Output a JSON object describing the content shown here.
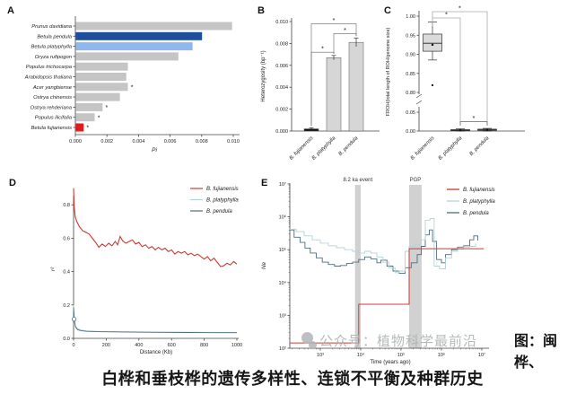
{
  "figure": {
    "panel_labels": {
      "a": "A",
      "b": "B",
      "c": "C",
      "d": "D",
      "e": "E"
    }
  },
  "caption": {
    "side_note": "图：闽桦、",
    "main": "白桦和垂枝桦的遗传多样性、连锁不平衡及种群历史"
  },
  "watermark": {
    "source_label": "公众号：植物科学最前沿",
    "icon": "official-account-icon"
  },
  "colors": {
    "gray_bar": "#c5c5c5",
    "bar_gray": "#d6d6d6",
    "dark_blue": "#1e4f9e",
    "light_blue": "#8fb9ee",
    "red": "#e6191b",
    "black": "#111111",
    "box_gray": "#dadada",
    "line_red": "#cc3b33",
    "line_teal": "#b5d3d5",
    "line_slate": "#4e6e7c",
    "band_gray": "#c9c9c9",
    "axis": "#444444"
  },
  "chart_data": [
    {
      "panel": "A",
      "type": "bar",
      "orientation": "horizontal",
      "xlabel": "Pi",
      "xlim": [
        0,
        0.01
      ],
      "xticks": [
        0,
        0.002,
        0.004,
        0.006,
        0.008,
        0.01
      ],
      "categories": [
        "Prunus davidiana",
        "Betula pendula",
        "Betula platyphylla",
        "Oryza rufipogon",
        "Populus trichocarpa",
        "Arabidopsis thaliana",
        "Acer yangbiense",
        "Ostrya chinensis",
        "Ostrya rehderiana",
        "Populus ilicifolia",
        "Betula fujianensis"
      ],
      "values": [
        0.0099,
        0.008,
        0.0074,
        0.0065,
        0.0033,
        0.0032,
        0.0033,
        0.0028,
        0.0017,
        0.0012,
        0.0005
      ],
      "starred": [
        false,
        false,
        false,
        false,
        false,
        false,
        true,
        false,
        true,
        true,
        true
      ],
      "bar_colors": [
        "gray_bar",
        "dark_blue",
        "light_blue",
        "gray_bar",
        "gray_bar",
        "gray_bar",
        "gray_bar",
        "gray_bar",
        "gray_bar",
        "gray_bar",
        "red"
      ]
    },
    {
      "panel": "B",
      "type": "bar",
      "orientation": "vertical",
      "ylabel": "Heterozygosity (bp⁻¹)",
      "ylim": [
        0,
        0.01
      ],
      "yticks": [
        0,
        0.002,
        0.004,
        0.006,
        0.008,
        0.01
      ],
      "categories": [
        "B. fujianensis",
        "B. platyphylla",
        "B. pendula"
      ],
      "values": [
        0.0002,
        0.0067,
        0.0081
      ],
      "errors": [
        0.0001,
        0.0002,
        0.0004
      ],
      "bar_colors": [
        "black",
        "bar_gray",
        "bar_gray"
      ],
      "sig_brackets": [
        {
          "from": 0,
          "to": 1,
          "y": 0.0072,
          "label": "*"
        },
        {
          "from": 1,
          "to": 2,
          "y": 0.0089,
          "label": "*"
        },
        {
          "from": 0,
          "to": 2,
          "y": 0.0098,
          "label": "*"
        }
      ]
    },
    {
      "panel": "C",
      "type": "box",
      "ylabel": "FROH(total length of ROH/genome size)",
      "yticks_upper": [
        1.0,
        0.95,
        0.9,
        0.85,
        0.8
      ],
      "yticks_lower": [
        0.05,
        0.0
      ],
      "axis_break": true,
      "categories": [
        "B. fujianensis",
        "B. platyphylla",
        "B. pendula"
      ],
      "boxes": [
        {
          "whisker_low": 0.885,
          "q1": 0.908,
          "median": 0.929,
          "q3": 0.953,
          "whisker_high": 0.985,
          "mean": 0.925,
          "outliers": [
            0.819
          ]
        },
        {
          "whisker_low": 0.0,
          "q1": 0.001,
          "median": 0.002,
          "q3": 0.004,
          "whisker_high": 0.006,
          "mean": 0.002,
          "outliers": []
        },
        {
          "whisker_low": 0.0,
          "q1": 0.002,
          "median": 0.003,
          "q3": 0.005,
          "whisker_high": 0.007,
          "mean": 0.003,
          "outliers": []
        }
      ],
      "sig_brackets": [
        {
          "from": 0,
          "to": 1,
          "label": "*",
          "position": "top"
        },
        {
          "from": 0,
          "to": 2,
          "label": "*",
          "position": "top-outer"
        },
        {
          "from": 1,
          "to": 2,
          "label": "*",
          "position": "bottom"
        }
      ]
    },
    {
      "panel": "D",
      "type": "line",
      "xlabel": "Distance (Kb)",
      "ylabel": "r²",
      "xlim": [
        0,
        1000
      ],
      "ylim": [
        0,
        0.9
      ],
      "xticks": [
        0,
        200,
        400,
        600,
        800,
        1000
      ],
      "yticks": [
        0,
        0.2,
        0.4,
        0.6,
        0.8
      ],
      "legend_position": "top-right",
      "marker": {
        "x": 3,
        "y": 0.115
      },
      "series": [
        {
          "name": "B. fujianensis",
          "color": "line_red",
          "x": [
            0,
            4,
            10,
            20,
            35,
            55,
            75,
            95,
            115,
            135,
            155,
            175,
            195,
            215,
            235,
            255,
            270,
            285,
            300,
            320,
            340,
            360,
            380,
            400,
            420,
            440,
            460,
            480,
            500,
            520,
            540,
            560,
            580,
            600,
            620,
            640,
            660,
            680,
            700,
            720,
            740,
            760,
            780,
            800,
            820,
            840,
            860,
            880,
            900,
            920,
            940,
            960,
            980,
            1000
          ],
          "y": [
            0.9,
            0.79,
            0.73,
            0.7,
            0.67,
            0.645,
            0.635,
            0.625,
            0.6,
            0.575,
            0.545,
            0.565,
            0.55,
            0.57,
            0.555,
            0.58,
            0.56,
            0.61,
            0.585,
            0.57,
            0.58,
            0.59,
            0.565,
            0.575,
            0.55,
            0.56,
            0.54,
            0.55,
            0.53,
            0.545,
            0.53,
            0.54,
            0.52,
            0.53,
            0.505,
            0.52,
            0.51,
            0.52,
            0.5,
            0.51,
            0.495,
            0.505,
            0.49,
            0.475,
            0.49,
            0.465,
            0.48,
            0.455,
            0.43,
            0.435,
            0.45,
            0.44,
            0.46,
            0.445
          ]
        },
        {
          "name": "B. platyphylla",
          "color": "line_teal",
          "x": [
            0,
            5,
            12,
            25,
            45,
            80,
            150,
            300,
            500,
            700,
            850,
            1000
          ],
          "y": [
            0.2,
            0.115,
            0.075,
            0.058,
            0.05,
            0.045,
            0.042,
            0.04,
            0.038,
            0.037,
            0.036,
            0.036
          ]
        },
        {
          "name": "B. pendula",
          "color": "line_slate",
          "x": [
            0,
            5,
            12,
            25,
            45,
            80,
            150,
            300,
            500,
            700,
            850,
            1000
          ],
          "y": [
            0.185,
            0.105,
            0.068,
            0.052,
            0.046,
            0.042,
            0.04,
            0.038,
            0.036,
            0.035,
            0.034,
            0.034
          ]
        }
      ]
    },
    {
      "panel": "E",
      "type": "step",
      "xlabel": "Time (years ago)",
      "ylabel": "Ne",
      "xscale": "log",
      "yscale": "log",
      "xticks": [
        "10³",
        "10⁴",
        "10⁵",
        "10⁶",
        "10⁷"
      ],
      "yticks": [
        "10²",
        "10³",
        "10⁴",
        "10⁵",
        "10⁶",
        "10⁷"
      ],
      "events": [
        {
          "label": "8.2 ka event",
          "log_x_range": [
            3.86,
            4.0
          ]
        },
        {
          "label": "PGP",
          "log_x_range": [
            5.2,
            5.51
          ]
        }
      ],
      "series": [
        {
          "name": "B. fujianensis",
          "color": "line_red",
          "log_points": [
            [
              2.24,
              2.16
            ],
            [
              3.95,
              2.16
            ],
            [
              3.95,
              3.34
            ],
            [
              5.2,
              3.34
            ],
            [
              5.2,
              5.03
            ],
            [
              7.05,
              5.03
            ]
          ]
        },
        {
          "name": "B. platyphylla",
          "color": "line_teal",
          "log_points": [
            [
              2.24,
              5.62
            ],
            [
              2.4,
              5.55
            ],
            [
              2.6,
              5.42
            ],
            [
              2.8,
              5.3
            ],
            [
              3.0,
              5.2
            ],
            [
              3.2,
              5.12
            ],
            [
              3.4,
              5.06
            ],
            [
              3.6,
              5.0
            ],
            [
              3.8,
              4.95
            ],
            [
              3.95,
              4.9
            ],
            [
              4.1,
              4.95
            ],
            [
              4.25,
              4.9
            ],
            [
              4.4,
              4.78
            ],
            [
              4.55,
              4.62
            ],
            [
              4.7,
              4.45
            ],
            [
              4.85,
              4.3
            ],
            [
              4.95,
              4.35
            ],
            [
              5.1,
              4.95
            ],
            [
              5.2,
              5.1
            ],
            [
              5.35,
              5.15
            ],
            [
              5.5,
              5.3
            ],
            [
              5.6,
              5.9
            ],
            [
              5.72,
              5.95
            ],
            [
              5.82,
              4.5
            ],
            [
              5.95,
              4.42
            ],
            [
              6.1,
              4.75
            ],
            [
              6.25,
              4.95
            ],
            [
              6.4,
              5.02
            ],
            [
              6.55,
              5.08
            ],
            [
              6.7,
              5.1
            ],
            [
              6.85,
              5.18
            ]
          ]
        },
        {
          "name": "B. pendula",
          "color": "line_slate",
          "log_points": [
            [
              2.24,
              5.6
            ],
            [
              2.35,
              5.38
            ],
            [
              2.5,
              5.22
            ],
            [
              2.62,
              5.05
            ],
            [
              2.75,
              4.9
            ],
            [
              2.9,
              4.75
            ],
            [
              3.05,
              4.62
            ],
            [
              3.2,
              4.55
            ],
            [
              3.35,
              4.5
            ],
            [
              3.5,
              4.52
            ],
            [
              3.65,
              4.58
            ],
            [
              3.8,
              4.62
            ],
            [
              3.95,
              4.7
            ],
            [
              4.1,
              4.78
            ],
            [
              4.25,
              4.72
            ],
            [
              4.4,
              4.6
            ],
            [
              4.5,
              4.68
            ],
            [
              4.65,
              4.5
            ],
            [
              4.8,
              4.35
            ],
            [
              4.95,
              4.28
            ],
            [
              5.1,
              4.45
            ],
            [
              5.25,
              4.6
            ],
            [
              5.4,
              4.85
            ],
            [
              5.5,
              5.1
            ],
            [
              5.6,
              5.45
            ],
            [
              5.7,
              5.6
            ],
            [
              5.78,
              5.25
            ],
            [
              5.88,
              4.7
            ],
            [
              6.0,
              4.6
            ],
            [
              6.1,
              4.85
            ],
            [
              6.25,
              5.0
            ],
            [
              6.4,
              5.08
            ],
            [
              6.55,
              5.12
            ],
            [
              6.7,
              5.3
            ],
            [
              6.8,
              5.42
            ],
            [
              6.9,
              5.28
            ]
          ]
        }
      ]
    }
  ]
}
